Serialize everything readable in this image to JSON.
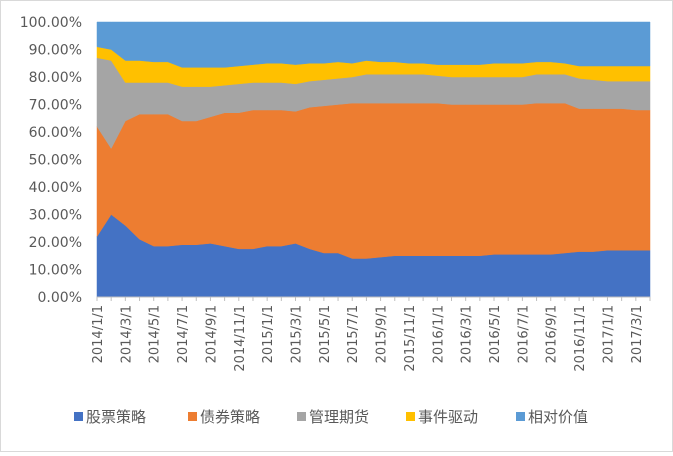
{
  "chart_data": {
    "type": "area",
    "stacked": true,
    "normalized": true,
    "x": [
      "2014/1/1",
      "2014/2/1",
      "2014/3/1",
      "2014/4/1",
      "2014/5/1",
      "2014/6/1",
      "2014/7/1",
      "2014/8/1",
      "2014/9/1",
      "2014/10/1",
      "2014/11/1",
      "2014/12/1",
      "2015/1/1",
      "2015/2/1",
      "2015/3/1",
      "2015/4/1",
      "2015/5/1",
      "2015/6/1",
      "2015/7/1",
      "2015/8/1",
      "2015/9/1",
      "2015/10/1",
      "2015/11/1",
      "2015/12/1",
      "2016/1/1",
      "2016/2/1",
      "2016/3/1",
      "2016/4/1",
      "2016/5/1",
      "2016/6/1",
      "2016/7/1",
      "2016/8/1",
      "2016/9/1",
      "2016/10/1",
      "2016/11/1",
      "2016/12/1",
      "2017/1/1",
      "2017/2/1",
      "2017/3/1",
      "2017/4/1"
    ],
    "x_tick_labels": [
      "2014/1/1",
      "2014/3/1",
      "2014/5/1",
      "2014/7/1",
      "2014/9/1",
      "2014/11/1",
      "2015/1/1",
      "2015/3/1",
      "2015/5/1",
      "2015/7/1",
      "2015/9/1",
      "2015/11/1",
      "2016/1/1",
      "2016/3/1",
      "2016/5/1",
      "2016/7/1",
      "2016/9/1",
      "2016/11/1",
      "2017/1/1",
      "2017/3/1"
    ],
    "y_tick_labels": [
      "0.00%",
      "10.00%",
      "20.00%",
      "30.00%",
      "40.00%",
      "50.00%",
      "60.00%",
      "70.00%",
      "80.00%",
      "90.00%",
      "100.00%"
    ],
    "ylim": [
      0,
      100
    ],
    "grid": false,
    "legend_position": "bottom",
    "series": [
      {
        "name": "股票策略",
        "color": "#4472C4",
        "values": [
          22,
          30,
          26,
          21,
          18.5,
          18.5,
          19,
          19,
          19.5,
          18.5,
          17.5,
          17.5,
          18.5,
          18.5,
          19.5,
          17.5,
          16,
          16,
          14,
          14,
          14.5,
          15,
          15,
          15,
          15,
          15,
          15,
          15,
          15.5,
          15.5,
          15.5,
          15.5,
          15.5,
          16,
          16.5,
          16.5,
          17,
          17,
          17,
          17
        ]
      },
      {
        "name": "债券策略",
        "color": "#ED7D31",
        "values": [
          40,
          24,
          38,
          45.5,
          48,
          48,
          45,
          45,
          46,
          48.5,
          49.5,
          50.5,
          49.5,
          49.5,
          48,
          51.5,
          53.5,
          54,
          56.5,
          56.5,
          56,
          55.5,
          55.5,
          55.5,
          55.5,
          55,
          55,
          55,
          54.5,
          54.5,
          54.5,
          55,
          55,
          54.5,
          52,
          52,
          51.5,
          51.5,
          51,
          51
        ]
      },
      {
        "name": "管理期货",
        "color": "#A5A5A5",
        "values": [
          25,
          32,
          14,
          11.5,
          11.5,
          11.5,
          12.5,
          12.5,
          11,
          10,
          10.5,
          10,
          10,
          10,
          10,
          9.5,
          9.5,
          9.5,
          9.5,
          10.5,
          10.5,
          10.5,
          10.5,
          10.5,
          10,
          10,
          10,
          10,
          10,
          10,
          10,
          10.5,
          10.5,
          10.5,
          11,
          10.5,
          10,
          10,
          10.5,
          10.5
        ]
      },
      {
        "name": "事件驱动",
        "color": "#FFC000",
        "values": [
          4,
          4,
          8,
          8,
          7.5,
          7.5,
          7,
          7,
          7,
          6.5,
          6.5,
          6.5,
          7,
          7,
          7,
          6.5,
          6,
          6,
          5,
          5,
          4.5,
          4.5,
          4,
          4,
          4,
          4.5,
          4.5,
          4.5,
          5,
          5,
          5,
          4.5,
          4.5,
          4,
          4.5,
          5,
          5.5,
          5.5,
          5.5,
          5.5
        ]
      },
      {
        "name": "相对价值",
        "color": "#5B9BD5",
        "values": [
          9,
          10,
          14,
          14,
          14.5,
          14.5,
          16.5,
          16.5,
          16.5,
          16.5,
          16,
          15.5,
          15,
          15,
          15.5,
          15,
          15,
          14.5,
          15,
          14,
          14.5,
          14.5,
          15,
          15,
          15.5,
          15.5,
          15.5,
          15.5,
          15,
          15,
          15,
          14.5,
          14.5,
          15,
          16,
          16,
          16,
          16,
          16,
          16
        ]
      }
    ]
  }
}
